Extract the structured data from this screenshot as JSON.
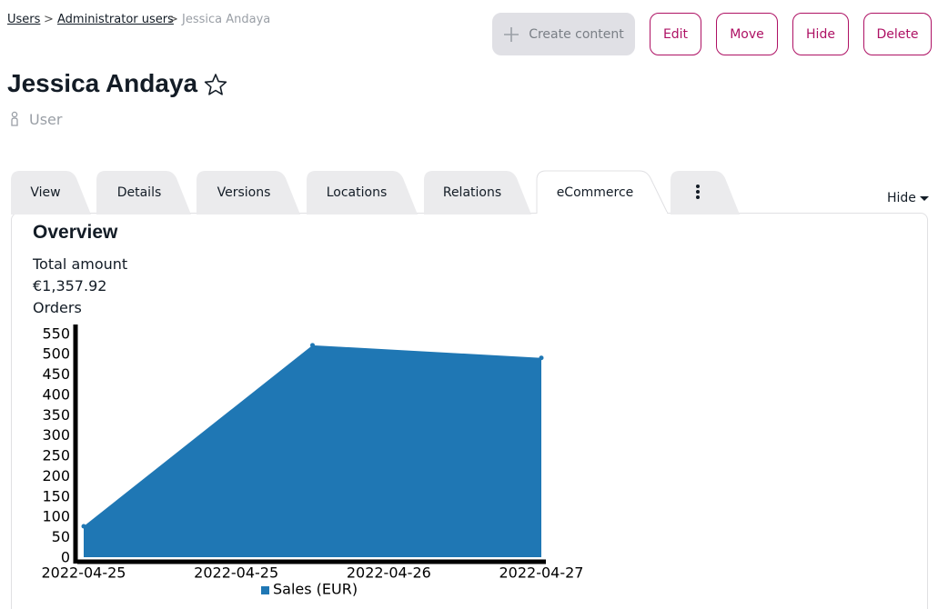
{
  "breadcrumbs": [
    "Users",
    "Administrator users",
    "Jessica Andaya"
  ],
  "breadcrumb_separator": ">",
  "actions": [
    "Create content",
    "Edit",
    "Move",
    "Hide",
    "Delete"
  ],
  "title": "Jessica Andaya",
  "content_type": "User",
  "tabs": [
    "View",
    "Details",
    "Versions",
    "Locations",
    "Relations",
    "eCommerce"
  ],
  "hide_toggle": "Hide",
  "section": {
    "heading": "Overview",
    "total_label": "Total amount",
    "total_value": "€1,357.92",
    "orders_label": "Orders"
  },
  "chart_data": {
    "type": "area",
    "x": [
      "2022-04-25",
      "2022-04-26",
      "2022-04-27"
    ],
    "series": [
      {
        "name": "Sales (EUR)",
        "color": "#1f77b4",
        "values": [
          76,
          521,
          490
        ]
      }
    ],
    "xlim": [
      "2022-04-25",
      "2022-04-27"
    ],
    "xticks": [
      {
        "value": "2022-04-25T00:00",
        "label": "2022-04-25"
      },
      {
        "value": "2022-04-25T16:00",
        "label": "2022-04-25"
      },
      {
        "value": "2022-04-26T08:00",
        "label": "2022-04-26"
      },
      {
        "value": "2022-04-27T00:00",
        "label": "2022-04-27"
      }
    ],
    "ylim": [
      0,
      572
    ],
    "yticks": [
      0,
      50,
      100,
      150,
      200,
      250,
      300,
      350,
      400,
      450,
      500,
      550
    ],
    "legend": "bottom"
  }
}
